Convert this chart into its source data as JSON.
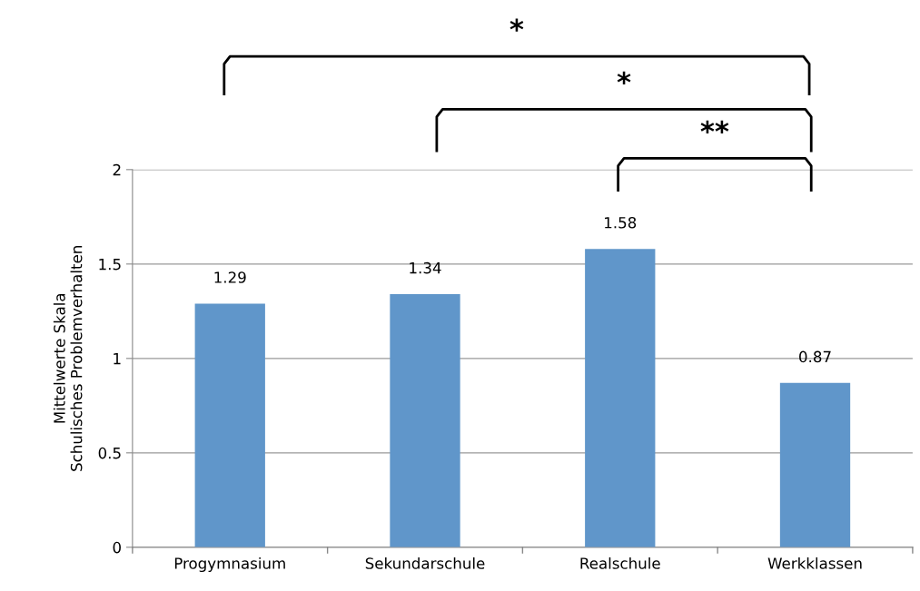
{
  "chart_data": {
    "type": "bar",
    "ylabel": "Mittelwerte Skala\nSchulisches Problemverhalten",
    "categories": [
      "Progymnasium",
      "Sekundarschule",
      "Realschule",
      "Werkklassen"
    ],
    "values": [
      1.29,
      1.34,
      1.58,
      0.87
    ],
    "color": "#6096ca",
    "ylim": [
      0,
      2
    ],
    "yticks": [
      0,
      0.5,
      1,
      1.5,
      2
    ],
    "grid": "y",
    "data_labels": true,
    "annotations": [
      "*",
      "*",
      "**"
    ]
  }
}
